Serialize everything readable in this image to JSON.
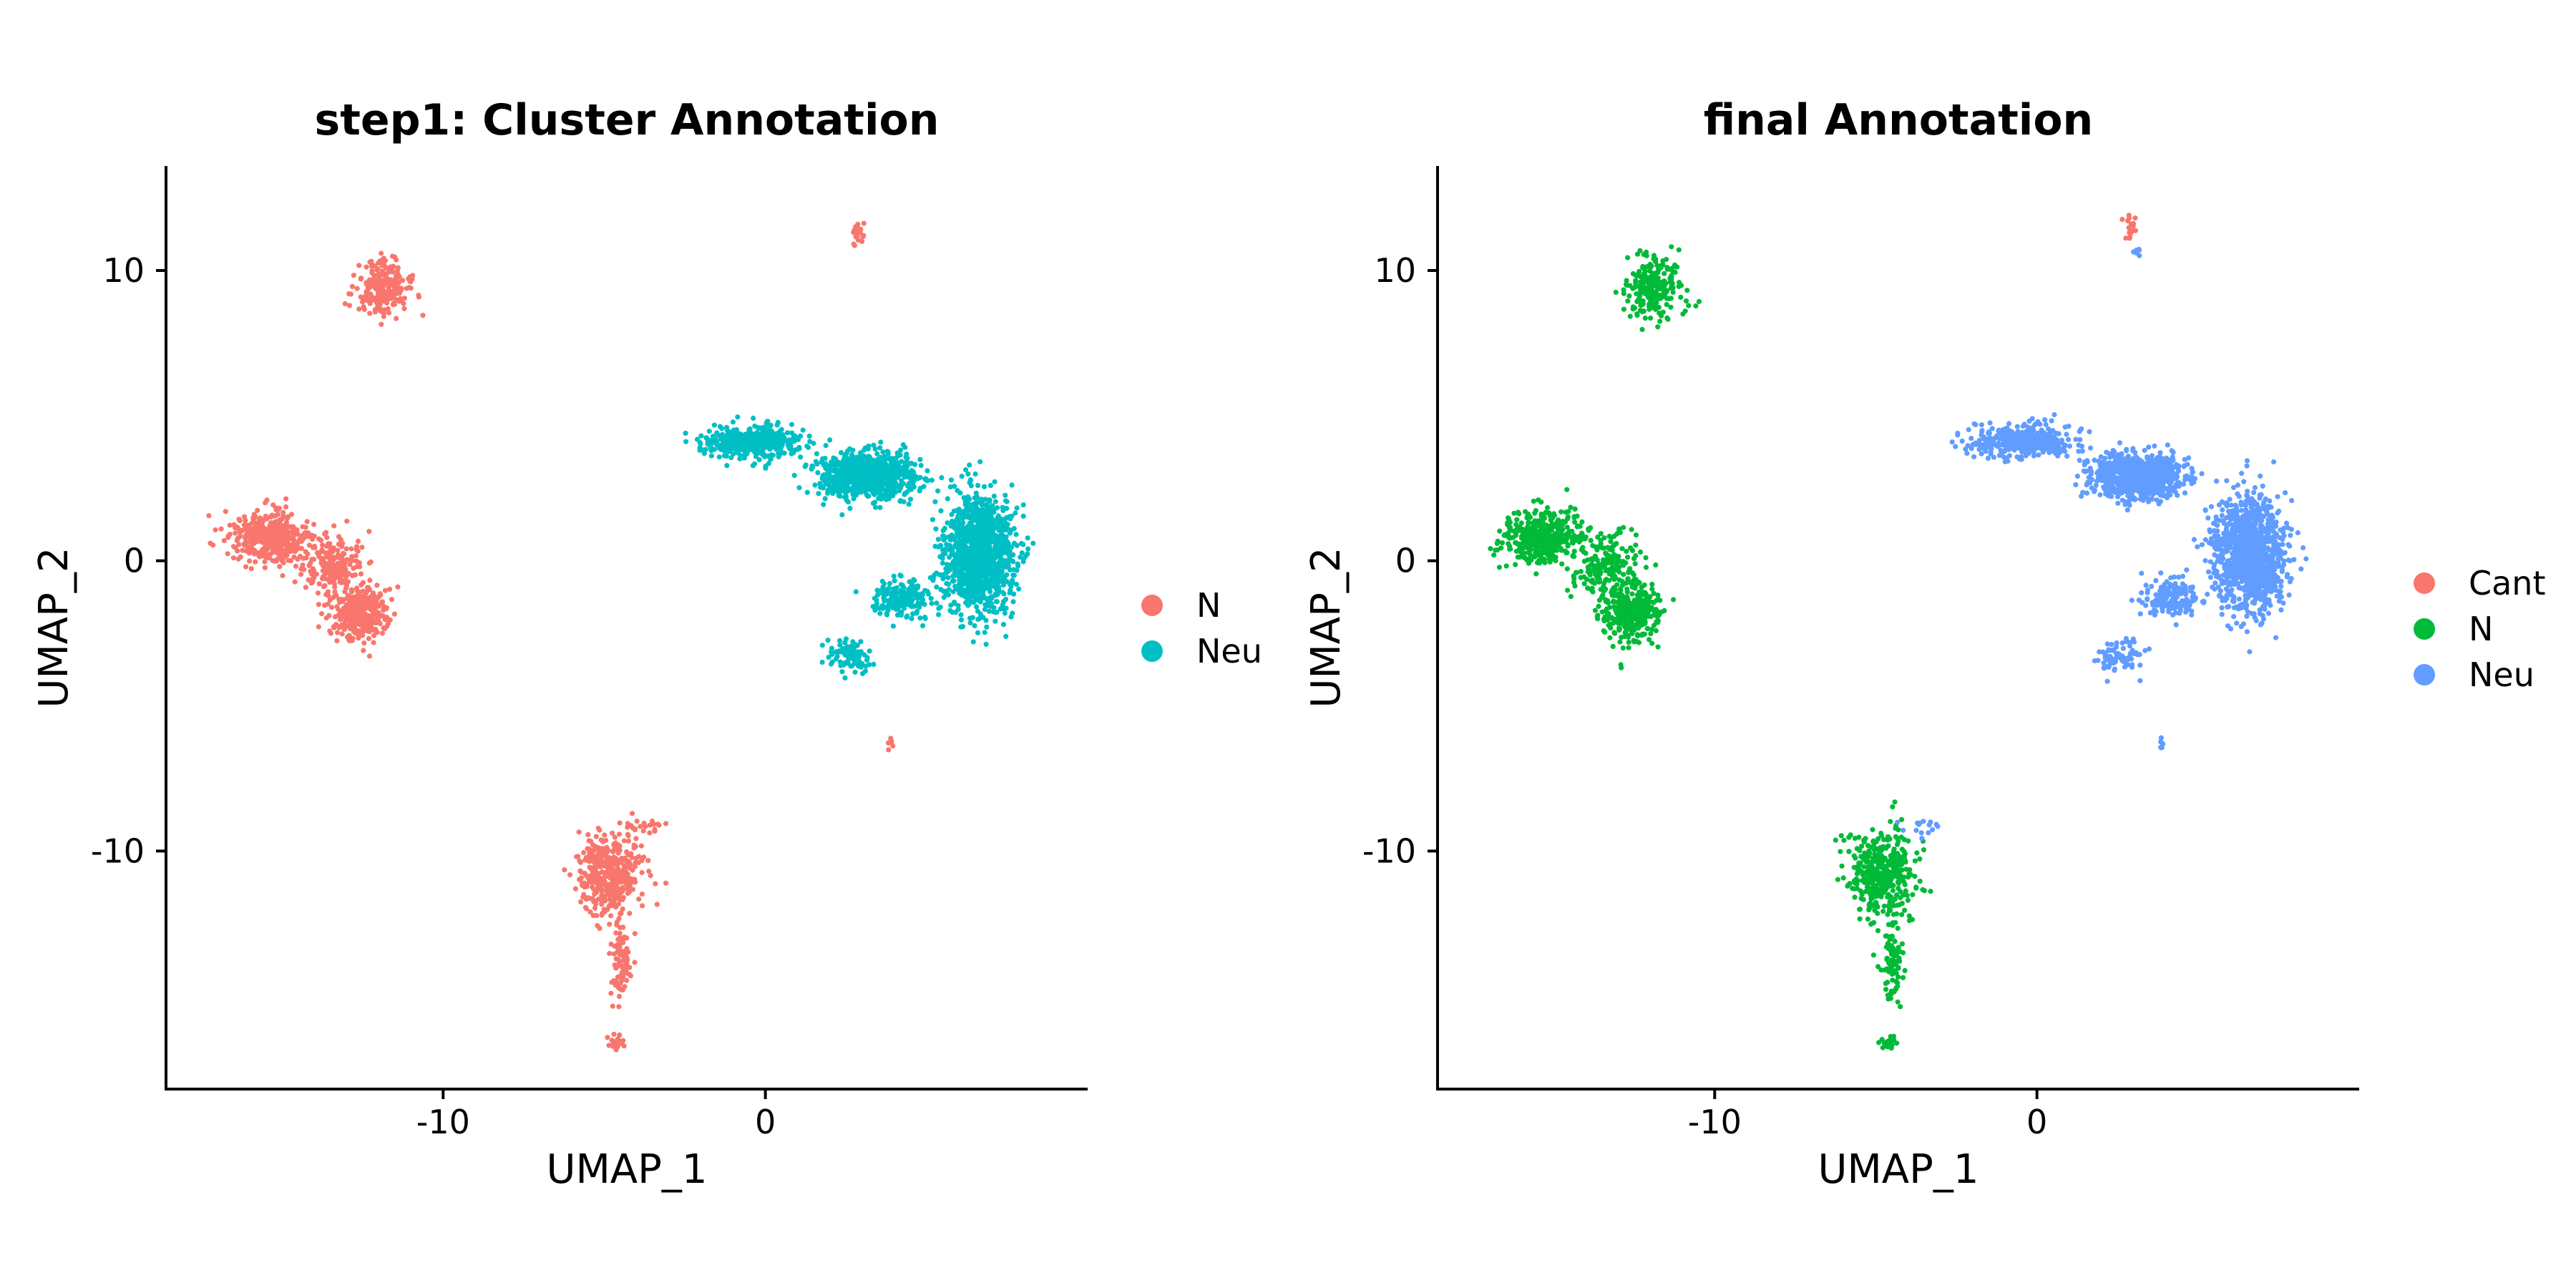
{
  "chart_data": [
    {
      "type": "scatter",
      "title": "step1: Cluster Annotation",
      "xlabel": "UMAP_1",
      "ylabel": "UMAP_2",
      "xlim": [
        -18.6,
        10.0
      ],
      "ylim": [
        -18.2,
        13.6
      ],
      "xticks": [
        -10,
        0
      ],
      "yticks": [
        10,
        0,
        -10
      ],
      "xtick_labels": [
        "-10",
        "0"
      ],
      "ytick_labels": [
        "10",
        "0",
        "-10"
      ],
      "grid": false,
      "legend_position": "right",
      "series": [
        {
          "name": "N",
          "color": "#F8766D"
        },
        {
          "name": "Neu",
          "color": "#00BFC4"
        }
      ],
      "clusters": [
        {
          "series": "N",
          "center": [
            -11.9,
            9.4
          ],
          "spread": [
            0.8,
            0.9
          ],
          "count": 230
        },
        {
          "series": "N",
          "center": [
            -15.4,
            0.8
          ],
          "spread": [
            1.1,
            0.8
          ],
          "count": 420
        },
        {
          "series": "N",
          "center": [
            -13.4,
            -0.2
          ],
          "spread": [
            0.9,
            1.1
          ],
          "count": 200
        },
        {
          "series": "N",
          "center": [
            -12.6,
            -1.8
          ],
          "spread": [
            0.8,
            0.9
          ],
          "count": 340
        },
        {
          "series": "N",
          "center": [
            -4.8,
            -10.8
          ],
          "spread": [
            0.9,
            1.3
          ],
          "count": 420
        },
        {
          "series": "N",
          "center": [
            -4.5,
            -13.8
          ],
          "spread": [
            0.3,
            1.2
          ],
          "count": 90
        },
        {
          "series": "N",
          "center": [
            -4.6,
            -16.6
          ],
          "spread": [
            0.2,
            0.2
          ],
          "count": 25
        },
        {
          "series": "N",
          "center": [
            -3.6,
            -9.2
          ],
          "spread": [
            0.6,
            0.3
          ],
          "count": 15
        },
        {
          "series": "N",
          "center": [
            2.9,
            11.2
          ],
          "spread": [
            0.2,
            0.5
          ],
          "count": 25
        },
        {
          "series": "N",
          "center": [
            3.9,
            -6.3
          ],
          "spread": [
            0.1,
            0.2
          ],
          "count": 6
        },
        {
          "series": "Neu",
          "center": [
            -0.5,
            4.1
          ],
          "spread": [
            1.4,
            0.5
          ],
          "count": 450
        },
        {
          "series": "Neu",
          "center": [
            3.2,
            2.9
          ],
          "spread": [
            1.4,
            0.7
          ],
          "count": 800
        },
        {
          "series": "Neu",
          "center": [
            6.6,
            0.2
          ],
          "spread": [
            1.0,
            1.8
          ],
          "count": 1200
        },
        {
          "series": "Neu",
          "center": [
            4.2,
            -1.3
          ],
          "spread": [
            0.8,
            0.6
          ],
          "count": 180
        },
        {
          "series": "Neu",
          "center": [
            2.6,
            -3.3
          ],
          "spread": [
            0.6,
            0.5
          ],
          "count": 90
        }
      ]
    },
    {
      "type": "scatter",
      "title": "final Annotation",
      "xlabel": "UMAP_1",
      "ylabel": "UMAP_2",
      "xlim": [
        -18.6,
        10.0
      ],
      "ylim": [
        -18.2,
        13.6
      ],
      "xticks": [
        -10,
        0
      ],
      "yticks": [
        10,
        0,
        -10
      ],
      "xtick_labels": [
        "-10",
        "0"
      ],
      "ytick_labels": [
        "10",
        "0",
        "-10"
      ],
      "grid": false,
      "legend_position": "right",
      "series": [
        {
          "name": "Cant",
          "color": "#F8766D"
        },
        {
          "name": "N",
          "color": "#00BA38"
        },
        {
          "name": "Neu",
          "color": "#619CFF"
        }
      ],
      "clusters": [
        {
          "series": "N",
          "center": [
            -11.9,
            9.4
          ],
          "spread": [
            0.8,
            0.9
          ],
          "count": 230
        },
        {
          "series": "N",
          "center": [
            -15.4,
            0.8
          ],
          "spread": [
            1.1,
            0.8
          ],
          "count": 420
        },
        {
          "series": "N",
          "center": [
            -13.4,
            -0.2
          ],
          "spread": [
            0.9,
            1.1
          ],
          "count": 200
        },
        {
          "series": "N",
          "center": [
            -12.6,
            -1.8
          ],
          "spread": [
            0.8,
            0.9
          ],
          "count": 340
        },
        {
          "series": "N",
          "center": [
            -4.8,
            -10.8
          ],
          "spread": [
            0.9,
            1.3
          ],
          "count": 420
        },
        {
          "series": "N",
          "center": [
            -4.5,
            -13.8
          ],
          "spread": [
            0.3,
            1.2
          ],
          "count": 90
        },
        {
          "series": "N",
          "center": [
            -4.6,
            -16.6
          ],
          "spread": [
            0.2,
            0.2
          ],
          "count": 25
        },
        {
          "series": "Neu",
          "center": [
            -3.6,
            -9.2
          ],
          "spread": [
            0.6,
            0.3
          ],
          "count": 15
        },
        {
          "series": "Cant",
          "center": [
            2.9,
            11.5
          ],
          "spread": [
            0.2,
            0.4
          ],
          "count": 18
        },
        {
          "series": "Neu",
          "center": [
            3.1,
            10.7
          ],
          "spread": [
            0.1,
            0.2
          ],
          "count": 8
        },
        {
          "series": "Neu",
          "center": [
            3.9,
            -6.3
          ],
          "spread": [
            0.1,
            0.2
          ],
          "count": 6
        },
        {
          "series": "Neu",
          "center": [
            -0.5,
            4.1
          ],
          "spread": [
            1.4,
            0.5
          ],
          "count": 450
        },
        {
          "series": "Neu",
          "center": [
            3.2,
            2.9
          ],
          "spread": [
            1.4,
            0.7
          ],
          "count": 800
        },
        {
          "series": "Neu",
          "center": [
            6.6,
            0.2
          ],
          "spread": [
            1.0,
            1.8
          ],
          "count": 1200
        },
        {
          "series": "Neu",
          "center": [
            4.2,
            -1.3
          ],
          "spread": [
            0.8,
            0.6
          ],
          "count": 180
        },
        {
          "series": "Neu",
          "center": [
            2.6,
            -3.3
          ],
          "spread": [
            0.6,
            0.5
          ],
          "count": 90
        }
      ]
    }
  ]
}
